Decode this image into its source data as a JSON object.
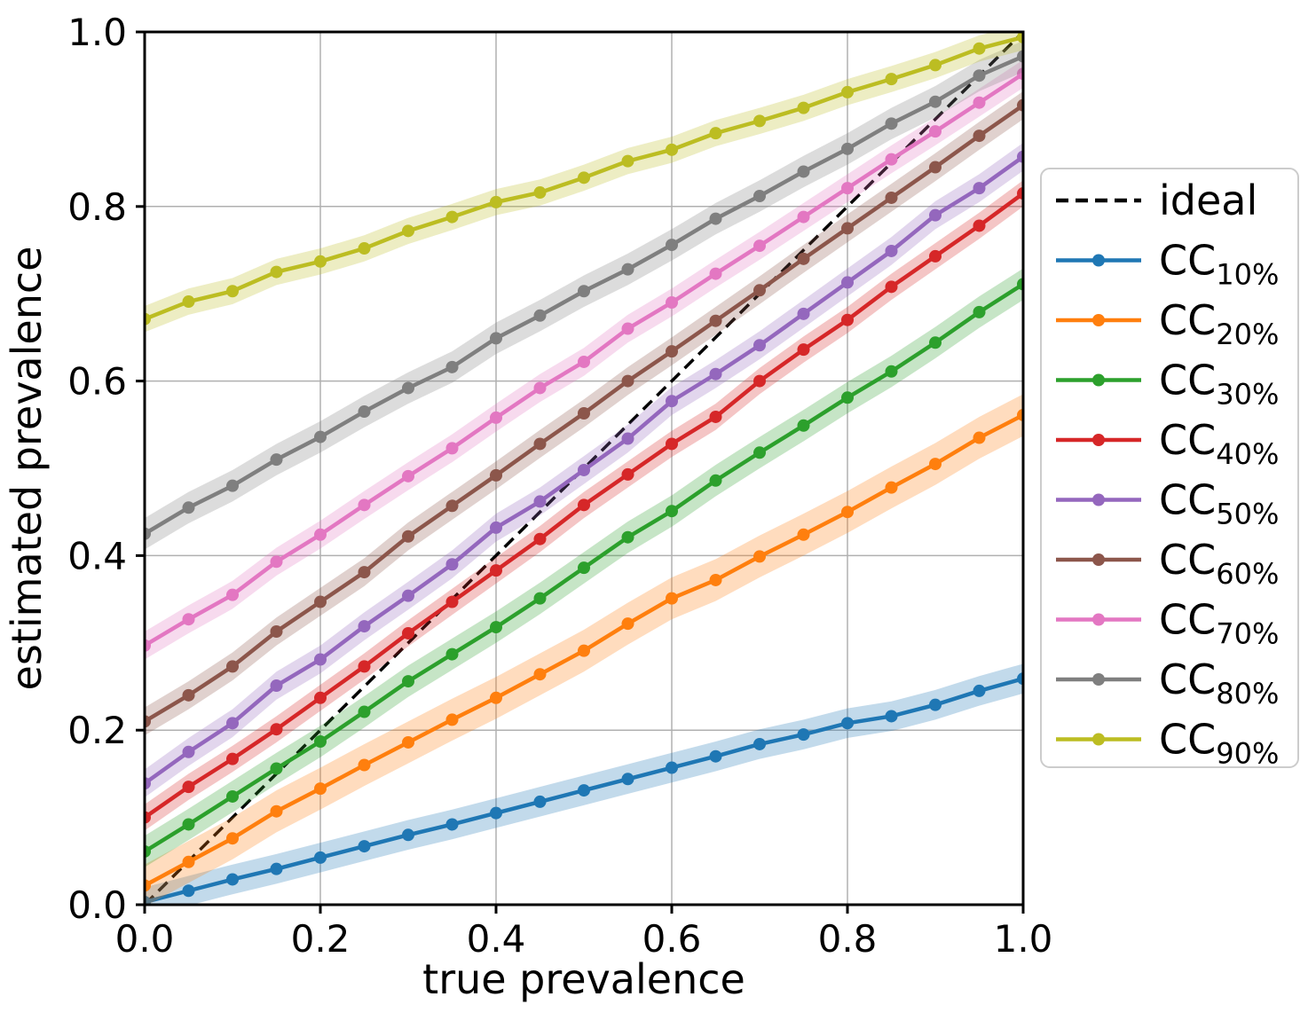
{
  "figure": {
    "background": "#ffffff",
    "grid_color": "#b0b0b0",
    "spine_color": "#000000",
    "legend_border_color": "#cccccc",
    "legend_background": "#ffffff"
  },
  "chart_data": {
    "type": "line",
    "title": "",
    "xlabel": "true prevalence",
    "ylabel": "estimated prevalence",
    "xlim": [
      0.0,
      1.0
    ],
    "ylim": [
      0.0,
      1.0
    ],
    "grid": true,
    "legend_position": "right outside",
    "xtick_values": [
      0.0,
      0.2,
      0.4,
      0.6,
      0.8,
      1.0
    ],
    "xtick_labels": [
      "0.0",
      "0.2",
      "0.4",
      "0.6",
      "0.8",
      "1.0"
    ],
    "ytick_values": [
      0.0,
      0.2,
      0.4,
      0.6,
      0.8,
      1.0
    ],
    "ytick_labels": [
      "0.0",
      "0.2",
      "0.4",
      "0.6",
      "0.8",
      "1.0"
    ],
    "ideal": {
      "label": "ideal",
      "color": "#000000",
      "style": "dashed",
      "x": [
        0.0,
        1.0
      ],
      "y": [
        0.0,
        1.0
      ]
    },
    "x": [
      0.0,
      0.05,
      0.1,
      0.15,
      0.2,
      0.25,
      0.3,
      0.35,
      0.4,
      0.45,
      0.5,
      0.55,
      0.6,
      0.65,
      0.7,
      0.75,
      0.8,
      0.85,
      0.9,
      0.95,
      1.0
    ],
    "series": [
      {
        "name": "CC",
        "sub": "10%",
        "color": "#1f77b4",
        "band_halfwidth": 0.017,
        "values": [
          0.003,
          0.016,
          0.029,
          0.041,
          0.054,
          0.067,
          0.08,
          0.092,
          0.105,
          0.118,
          0.131,
          0.144,
          0.157,
          0.17,
          0.184,
          0.195,
          0.208,
          0.216,
          0.229,
          0.245,
          0.259
        ]
      },
      {
        "name": "CC",
        "sub": "20%",
        "color": "#ff7f0e",
        "band_halfwidth": 0.024,
        "values": [
          0.022,
          0.049,
          0.076,
          0.107,
          0.133,
          0.16,
          0.186,
          0.212,
          0.237,
          0.264,
          0.291,
          0.322,
          0.351,
          0.372,
          0.399,
          0.424,
          0.45,
          0.478,
          0.505,
          0.535,
          0.561
        ]
      },
      {
        "name": "CC",
        "sub": "30%",
        "color": "#2ca02c",
        "band_halfwidth": 0.018,
        "values": [
          0.061,
          0.092,
          0.124,
          0.156,
          0.187,
          0.221,
          0.256,
          0.287,
          0.318,
          0.351,
          0.386,
          0.421,
          0.451,
          0.486,
          0.518,
          0.549,
          0.581,
          0.611,
          0.644,
          0.679,
          0.711
        ]
      },
      {
        "name": "CC",
        "sub": "40%",
        "color": "#d62728",
        "band_halfwidth": 0.015,
        "values": [
          0.1,
          0.135,
          0.167,
          0.201,
          0.237,
          0.273,
          0.311,
          0.347,
          0.383,
          0.419,
          0.458,
          0.493,
          0.528,
          0.559,
          0.6,
          0.636,
          0.67,
          0.708,
          0.743,
          0.778,
          0.815
        ]
      },
      {
        "name": "CC",
        "sub": "50%",
        "color": "#9467bd",
        "band_halfwidth": 0.016,
        "values": [
          0.139,
          0.175,
          0.208,
          0.251,
          0.281,
          0.319,
          0.354,
          0.39,
          0.432,
          0.462,
          0.498,
          0.534,
          0.577,
          0.608,
          0.641,
          0.677,
          0.713,
          0.749,
          0.79,
          0.821,
          0.857
        ]
      },
      {
        "name": "CC",
        "sub": "60%",
        "color": "#8c564b",
        "band_halfwidth": 0.016,
        "values": [
          0.21,
          0.24,
          0.273,
          0.313,
          0.347,
          0.381,
          0.422,
          0.457,
          0.492,
          0.528,
          0.563,
          0.6,
          0.634,
          0.669,
          0.704,
          0.74,
          0.775,
          0.81,
          0.845,
          0.881,
          0.916
        ]
      },
      {
        "name": "CC",
        "sub": "70%",
        "color": "#e377c2",
        "band_halfwidth": 0.016,
        "values": [
          0.297,
          0.327,
          0.355,
          0.393,
          0.424,
          0.458,
          0.491,
          0.523,
          0.558,
          0.592,
          0.622,
          0.66,
          0.69,
          0.723,
          0.755,
          0.788,
          0.821,
          0.854,
          0.886,
          0.919,
          0.952
        ]
      },
      {
        "name": "CC",
        "sub": "80%",
        "color": "#7f7f7f",
        "band_halfwidth": 0.018,
        "values": [
          0.425,
          0.455,
          0.48,
          0.51,
          0.536,
          0.565,
          0.592,
          0.616,
          0.649,
          0.675,
          0.703,
          0.728,
          0.756,
          0.786,
          0.812,
          0.84,
          0.866,
          0.895,
          0.92,
          0.95,
          0.972
        ]
      },
      {
        "name": "CC",
        "sub": "90%",
        "color": "#bcbd22",
        "band_halfwidth": 0.015,
        "values": [
          0.671,
          0.691,
          0.703,
          0.725,
          0.737,
          0.752,
          0.772,
          0.788,
          0.805,
          0.816,
          0.833,
          0.852,
          0.865,
          0.884,
          0.898,
          0.913,
          0.931,
          0.946,
          0.962,
          0.981,
          0.994
        ]
      }
    ]
  }
}
